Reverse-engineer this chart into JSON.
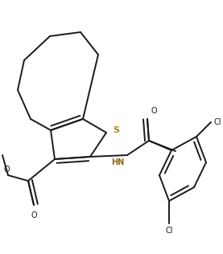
{
  "bg_color": "#ffffff",
  "line_color": "#1a1a1a",
  "s_color": "#b8860b",
  "hn_color": "#8B6914",
  "o_color": "#1a1a1a",
  "cl_color": "#1a1a1a",
  "line_width": 1.4,
  "fig_width": 2.77,
  "fig_height": 3.16,
  "dpi": 100,
  "xlim": [
    0,
    277
  ],
  "ylim": [
    0,
    316
  ]
}
